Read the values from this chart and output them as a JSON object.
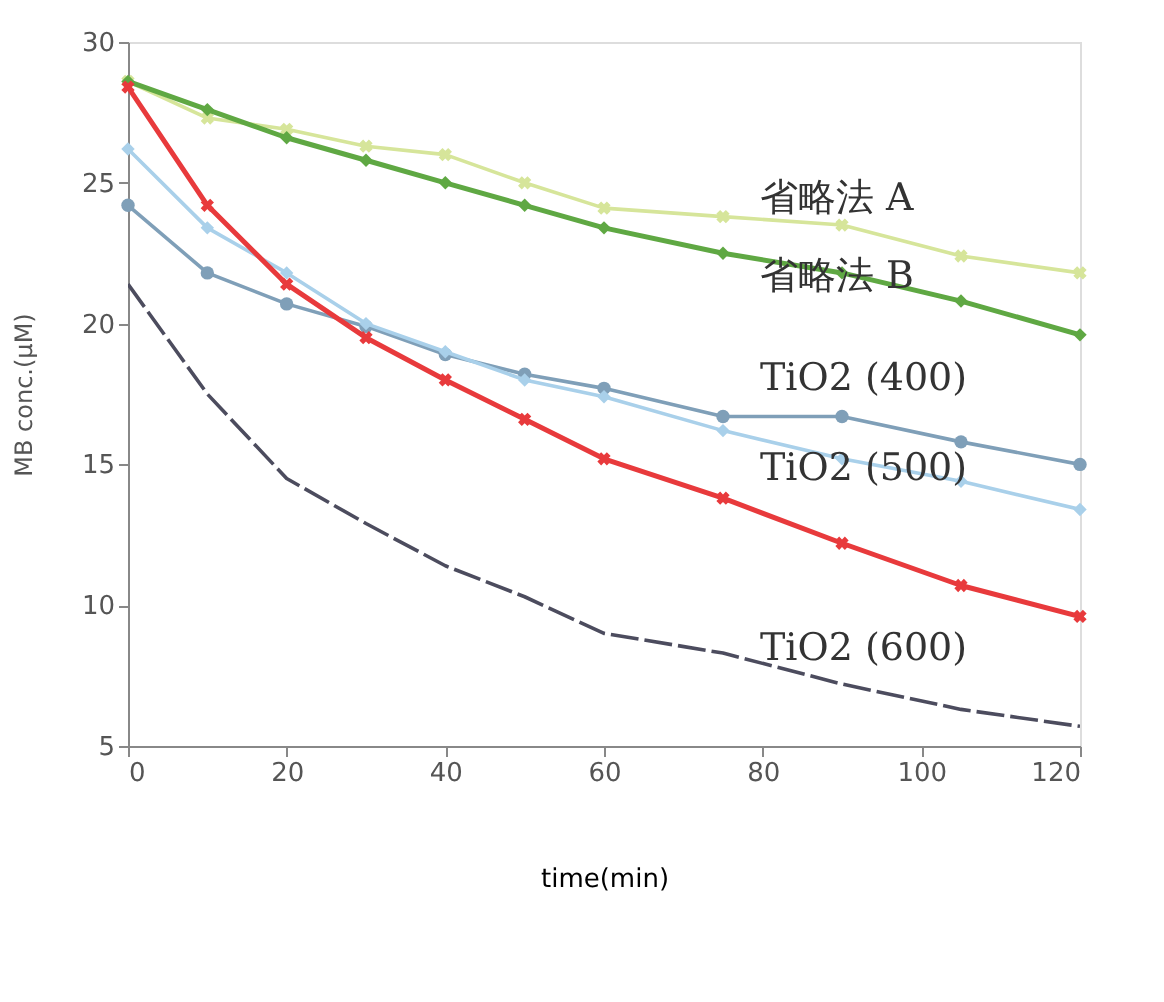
{
  "chart_data": {
    "type": "line",
    "xlabel": "time(min)",
    "ylabel": "MB conc.(μM)",
    "x": [
      0,
      10,
      20,
      30,
      40,
      50,
      60,
      75,
      90,
      105,
      120
    ],
    "xlim": [
      0,
      120
    ],
    "xticks": [
      0,
      20,
      40,
      60,
      80,
      100,
      120
    ],
    "ylim": [
      5,
      30
    ],
    "yticks": [
      5,
      10,
      15,
      20,
      25,
      30
    ],
    "grid": false,
    "series": [
      {
        "name": "省略法 A",
        "color": "#d6e59a",
        "marker": "cross",
        "values": [
          28.6,
          27.3,
          26.9,
          26.3,
          26.0,
          25.0,
          24.1,
          23.8,
          23.5,
          22.4,
          21.8
        ]
      },
      {
        "name": "省略法 B",
        "color": "#5fa843",
        "marker": "diamond",
        "values": [
          28.6,
          27.6,
          26.6,
          25.8,
          25.0,
          24.2,
          23.4,
          22.5,
          21.8,
          20.8,
          19.6
        ]
      },
      {
        "name": "TiO2 (400)",
        "color": "#7f9fb8",
        "marker": "circle",
        "values": [
          24.2,
          21.8,
          20.7,
          19.9,
          18.9,
          18.2,
          17.7,
          16.7,
          16.7,
          15.8,
          15.0
        ]
      },
      {
        "name": "TiO2 (500)",
        "color": "#a9d0ea",
        "marker": "diamond",
        "values": [
          26.2,
          23.4,
          21.8,
          20.0,
          19.0,
          18.0,
          17.4,
          16.2,
          15.2,
          14.4,
          13.4
        ]
      },
      {
        "color": "#e83a3c",
        "marker": "cross",
        "values": [
          28.4,
          24.2,
          21.4,
          19.5,
          18.0,
          16.6,
          15.2,
          13.8,
          12.2,
          10.7,
          9.6
        ]
      },
      {
        "name": "TiO2 (600)",
        "color": "#4c4c5e",
        "marker": "none",
        "line_style": "dashed",
        "values": [
          21.4,
          17.5,
          14.5,
          12.9,
          11.4,
          10.3,
          9.0,
          8.3,
          7.2,
          6.3,
          5.7
        ]
      }
    ]
  }
}
